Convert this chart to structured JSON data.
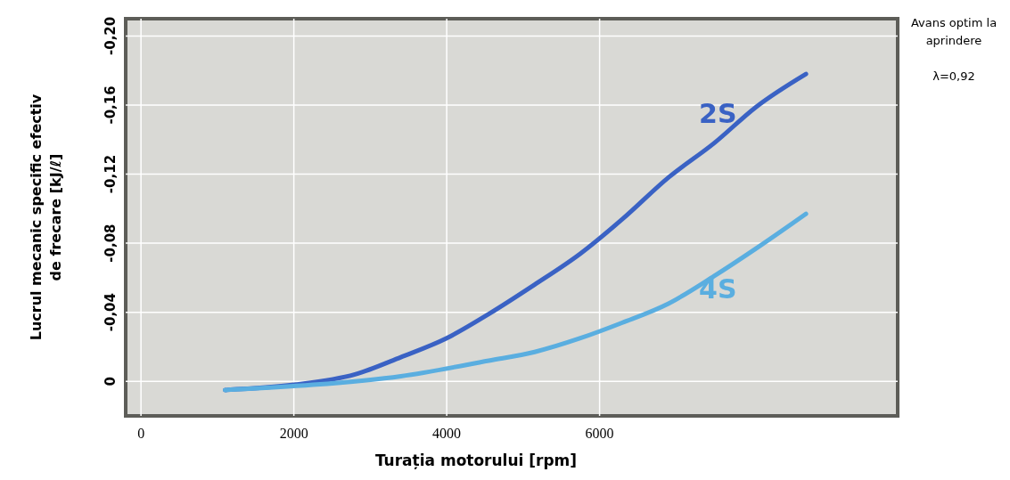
{
  "chart_data": {
    "type": "line",
    "xlabel": "Turația motorului [rpm]",
    "ylabel": "Lucrul mecanic specific efectiv\nde frecare [kJ/ℓ]",
    "annotations": [
      "Avans optim la\naprindere",
      "λ=0,92"
    ],
    "xlim": [
      -200,
      9900
    ],
    "xticks": [
      0,
      2000,
      4000,
      6000
    ],
    "ylim": [
      0.02,
      -0.21
    ],
    "yticks": [
      0,
      {
        "value": -0.04,
        "label": "-0,04"
      },
      {
        "value": -0.08,
        "label": "-0,08"
      },
      {
        "value": -0.12,
        "label": "-0,12"
      },
      {
        "value": -0.16,
        "label": "-0,16"
      },
      {
        "value": -0.2,
        "label": "-0,20"
      }
    ],
    "grid": true,
    "line_style": "solid",
    "series": [
      {
        "name": "2S",
        "color": "#3a62c4",
        "x": [
          1100,
          2000,
          2800,
          3400,
          4000,
          4550,
          5150,
          5750,
          6300,
          6900,
          7500,
          8050,
          8700
        ],
        "values": [
          0.005,
          0.002,
          -0.004,
          -0.014,
          -0.025,
          -0.039,
          -0.056,
          -0.074,
          -0.094,
          -0.118,
          -0.138,
          -0.159,
          -0.178
        ]
      },
      {
        "name": "4S",
        "color": "#5aaee0",
        "x": [
          1100,
          2250,
          3400,
          4550,
          5150,
          5750,
          6300,
          6900,
          7500,
          8050,
          8700
        ],
        "values": [
          0.005,
          0.002,
          -0.003,
          -0.012,
          -0.017,
          -0.025,
          -0.034,
          -0.045,
          -0.061,
          -0.077,
          -0.097
        ]
      }
    ]
  }
}
